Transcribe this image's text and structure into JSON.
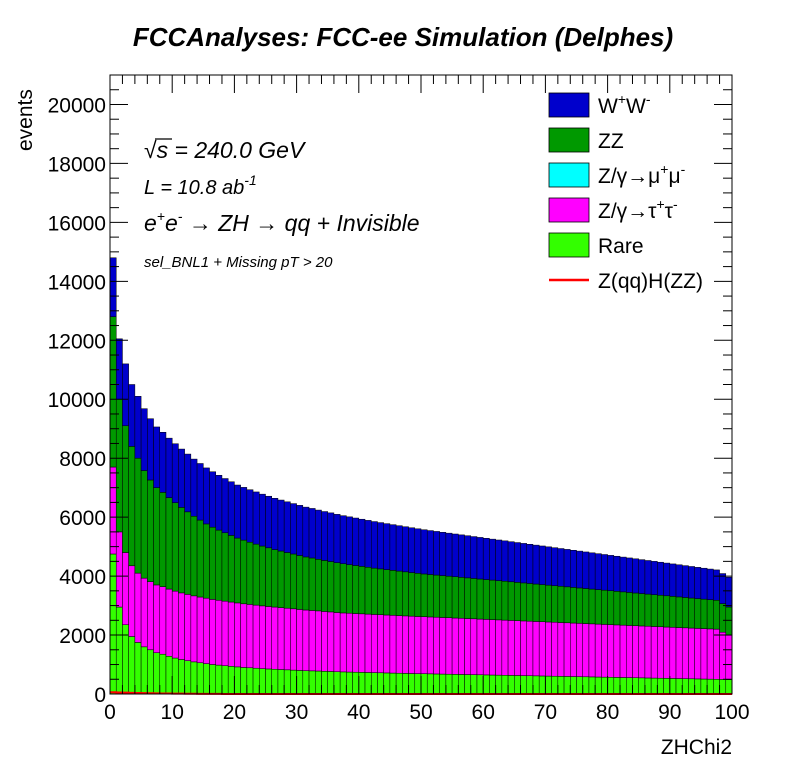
{
  "chart_data": {
    "type": "stacked-histogram",
    "title": "FCCAnalyses: FCC-ee Simulation (Delphes)",
    "xlabel": "ZHChi2",
    "ylabel": "events",
    "xlim": [
      0,
      100
    ],
    "ylim": [
      0,
      21000
    ],
    "bin_width": 1,
    "x_ticks": [
      0,
      10,
      20,
      30,
      40,
      50,
      60,
      70,
      80,
      90,
      100
    ],
    "y_ticks": [
      0,
      2000,
      4000,
      6000,
      8000,
      10000,
      12000,
      14000,
      16000,
      18000,
      20000
    ],
    "annotations": {
      "sqrt_s_symbol": "√",
      "sqrt_s_var": "s",
      "sqrt_s_rest": " = 240.0 GeV",
      "lumi_main": "L = 10.8 ab",
      "lumi_exp": "-1",
      "process_e": "e",
      "process_plus": "+",
      "process_e2": "e",
      "process_minus": "-",
      "process_rest": " → ZH → qq + Invisible",
      "selection": "sel_BNL1 + Missing pT > 20"
    },
    "legend_position": "top-right",
    "series": [
      {
        "name": "Rare",
        "legend": {
          "base": "Rare",
          "parts": []
        },
        "color": "#33ff00",
        "values": [
          4750,
          2950,
          2350,
          1950,
          1750,
          1600,
          1500,
          1400,
          1350,
          1280,
          1220,
          1170,
          1130,
          1090,
          1060,
          1030,
          1000,
          980,
          960,
          940,
          920,
          900,
          890,
          875,
          860,
          850,
          840,
          830,
          820,
          810,
          800,
          790,
          785,
          780,
          770,
          765,
          755,
          750,
          745,
          740,
          735,
          730,
          725,
          720,
          715,
          710,
          705,
          700,
          695,
          690,
          688,
          684,
          680,
          676,
          672,
          668,
          664,
          660,
          656,
          652,
          648,
          644,
          640,
          636,
          632,
          628,
          624,
          620,
          616,
          612,
          608,
          604,
          600,
          596,
          592,
          588,
          584,
          580,
          576,
          572,
          568,
          564,
          560,
          556,
          552,
          548,
          544,
          540,
          536,
          532,
          528,
          524,
          520,
          516,
          512,
          508,
          504,
          500,
          496,
          492
        ]
      },
      {
        "name": "Z/γ→τ+τ-",
        "legend": {
          "base": "Z/γ→τ",
          "parts": [
            [
              "+",
              "τ"
            ],
            [
              "-",
              ""
            ]
          ]
        },
        "color": "#ff00ff",
        "values": [
          2950,
          2550,
          2450,
          2400,
          2350,
          2330,
          2310,
          2300,
          2290,
          2280,
          2270,
          2260,
          2250,
          2240,
          2230,
          2220,
          2210,
          2200,
          2190,
          2180,
          2170,
          2160,
          2150,
          2140,
          2130,
          2120,
          2110,
          2100,
          2090,
          2080,
          2070,
          2060,
          2050,
          2040,
          2030,
          2020,
          2010,
          2000,
          1995,
          1990,
          1985,
          1980,
          1975,
          1970,
          1965,
          1960,
          1955,
          1950,
          1945,
          1940,
          1935,
          1930,
          1925,
          1920,
          1915,
          1910,
          1905,
          1900,
          1895,
          1890,
          1885,
          1880,
          1875,
          1870,
          1865,
          1860,
          1855,
          1850,
          1845,
          1840,
          1835,
          1830,
          1825,
          1820,
          1815,
          1810,
          1805,
          1800,
          1795,
          1790,
          1785,
          1780,
          1775,
          1770,
          1765,
          1760,
          1755,
          1750,
          1745,
          1740,
          1735,
          1730,
          1725,
          1720,
          1715,
          1710,
          1705,
          1700,
          1600,
          1500
        ]
      },
      {
        "name": "Z/γ→μ+μ-",
        "legend": {
          "base": "Z/γ→μ",
          "parts": [
            [
              "+",
              "μ"
            ],
            [
              "-",
              ""
            ]
          ]
        },
        "color": "#00ffff",
        "values": [
          0,
          0,
          0,
          0,
          0,
          0,
          0,
          0,
          0,
          0,
          0,
          0,
          0,
          0,
          0,
          0,
          0,
          0,
          0,
          0,
          0,
          0,
          0,
          0,
          0,
          0,
          0,
          0,
          0,
          0,
          0,
          0,
          0,
          0,
          0,
          0,
          0,
          0,
          0,
          0,
          0,
          0,
          0,
          0,
          0,
          0,
          0,
          0,
          0,
          0,
          0,
          0,
          0,
          0,
          0,
          0,
          0,
          0,
          0,
          0,
          0,
          0,
          0,
          0,
          0,
          0,
          0,
          0,
          0,
          0,
          0,
          0,
          0,
          0,
          0,
          0,
          0,
          0,
          0,
          0,
          0,
          0,
          0,
          0,
          0,
          0,
          0,
          0,
          0,
          0,
          0,
          0,
          0,
          0,
          0,
          0,
          0,
          0,
          0,
          0
        ]
      },
      {
        "name": "ZZ",
        "legend": {
          "base": "ZZ",
          "parts": []
        },
        "color": "#009900",
        "values": [
          5100,
          4500,
          4300,
          4050,
          3900,
          3650,
          3450,
          3300,
          3200,
          3100,
          3000,
          2900,
          2800,
          2700,
          2610,
          2520,
          2450,
          2380,
          2320,
          2260,
          2200,
          2160,
          2110,
          2070,
          2030,
          1990,
          1950,
          1920,
          1890,
          1860,
          1830,
          1800,
          1780,
          1750,
          1730,
          1710,
          1690,
          1670,
          1650,
          1630,
          1610,
          1590,
          1570,
          1555,
          1540,
          1525,
          1510,
          1495,
          1480,
          1465,
          1450,
          1440,
          1430,
          1420,
          1410,
          1400,
          1390,
          1380,
          1370,
          1360,
          1350,
          1340,
          1330,
          1320,
          1310,
          1300,
          1290,
          1280,
          1270,
          1260,
          1250,
          1240,
          1230,
          1220,
          1210,
          1200,
          1190,
          1180,
          1170,
          1160,
          1150,
          1140,
          1130,
          1120,
          1110,
          1100,
          1090,
          1080,
          1070,
          1060,
          1050,
          1040,
          1030,
          1020,
          1010,
          1000,
          990,
          980,
          970,
          960
        ]
      },
      {
        "name": "W+W-",
        "legend": {
          "base": "W",
          "parts": [
            [
              "+",
              "W"
            ],
            [
              "-",
              ""
            ]
          ]
        },
        "color": "#0000cc",
        "values": [
          2000,
          2050,
          2100,
          2100,
          2100,
          2100,
          2080,
          2060,
          2040,
          2020,
          2000,
          1980,
          1960,
          1940,
          1920,
          1900,
          1880,
          1860,
          1840,
          1820,
          1800,
          1790,
          1780,
          1770,
          1760,
          1750,
          1740,
          1730,
          1720,
          1710,
          1700,
          1690,
          1680,
          1670,
          1660,
          1650,
          1640,
          1630,
          1620,
          1610,
          1600,
          1590,
          1580,
          1570,
          1560,
          1550,
          1540,
          1530,
          1520,
          1510,
          1500,
          1490,
          1480,
          1470,
          1460,
          1450,
          1440,
          1430,
          1420,
          1410,
          1400,
          1390,
          1380,
          1370,
          1360,
          1350,
          1340,
          1330,
          1320,
          1310,
          1300,
          1290,
          1280,
          1270,
          1260,
          1250,
          1240,
          1230,
          1220,
          1210,
          1200,
          1190,
          1180,
          1170,
          1160,
          1150,
          1140,
          1130,
          1120,
          1110,
          1100,
          1090,
          1080,
          1070,
          1060,
          1050,
          1040,
          1030,
          1020,
          1010
        ]
      },
      {
        "name": "Z(qq)H(ZZ)",
        "legend": {
          "base": "Z(qq)H(ZZ)",
          "parts": []
        },
        "color": "#ff0000",
        "line": true,
        "values": [
          60,
          50,
          45,
          40,
          35,
          30,
          25,
          20,
          18,
          16,
          14,
          12,
          10,
          8,
          6,
          5,
          4,
          3,
          2,
          1,
          0,
          0,
          0,
          0,
          0,
          0,
          0,
          0,
          0,
          0,
          0,
          0,
          0,
          0,
          0,
          0,
          0,
          0,
          0,
          0,
          0,
          0,
          0,
          0,
          0,
          0,
          0,
          0,
          0,
          0,
          0,
          0,
          0,
          0,
          0,
          0,
          0,
          0,
          0,
          0,
          0,
          0,
          0,
          0,
          0,
          0,
          0,
          0,
          0,
          0,
          0,
          0,
          0,
          0,
          0,
          0,
          0,
          0,
          0,
          0,
          0,
          0,
          0,
          0,
          0,
          0,
          0,
          0,
          0,
          0,
          0,
          0,
          0,
          0,
          0,
          0,
          0,
          0,
          0,
          0
        ]
      }
    ],
    "legend_order": [
      "W+W-",
      "ZZ",
      "Z/γ→μ+μ-",
      "Z/γ→τ+τ-",
      "Rare",
      "Z(qq)H(ZZ)"
    ]
  }
}
